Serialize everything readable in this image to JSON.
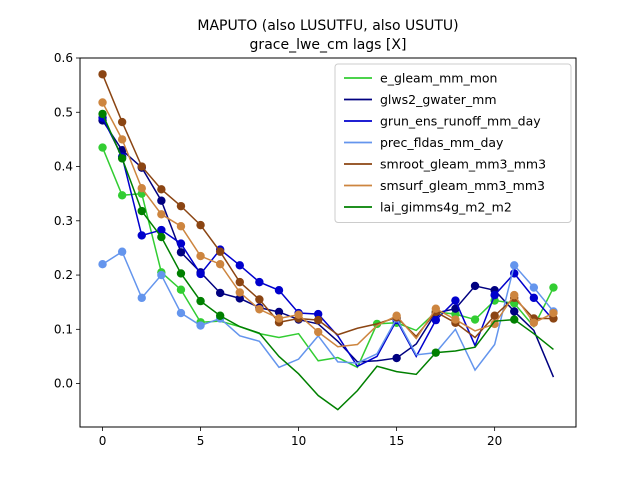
{
  "chart_data": {
    "type": "line",
    "title": "MAPUTO (also LUSUTFU, also USUTU)",
    "subtitle": "grace_lwe_cm lags [X]",
    "xlabel": "",
    "ylabel": "",
    "xlim": [
      -1.15,
      24.15
    ],
    "ylim": [
      -0.08,
      0.6
    ],
    "xticks": [
      0,
      5,
      10,
      15,
      20
    ],
    "yticks": [
      0.0,
      0.1,
      0.2,
      0.3,
      0.4,
      0.5,
      0.6
    ],
    "xtick_labels": [
      "0",
      "5",
      "10",
      "15",
      "20"
    ],
    "ytick_labels": [
      "0.0",
      "0.1",
      "0.2",
      "0.3",
      "0.4",
      "0.5",
      "0.6"
    ],
    "grid": false,
    "legend_position": "upper right",
    "x": [
      0,
      1,
      2,
      3,
      4,
      5,
      6,
      7,
      8,
      9,
      10,
      11,
      12,
      13,
      14,
      15,
      16,
      17,
      18,
      19,
      20,
      21,
      22,
      23
    ],
    "series": [
      {
        "name": "e_gleam_mm_mon",
        "color": "#32cd32",
        "values": [
          0.435,
          0.347,
          0.35,
          0.205,
          0.173,
          0.113,
          0.115,
          0.105,
          0.092,
          0.085,
          0.092,
          0.042,
          0.048,
          0.03,
          0.11,
          0.112,
          0.098,
          0.132,
          0.128,
          0.118,
          0.153,
          0.148,
          0.105,
          0.177
        ],
        "markers": [
          0,
          1,
          2,
          3,
          4,
          5,
          14,
          15,
          17,
          18,
          19,
          20,
          21,
          23
        ]
      },
      {
        "name": "glws2_gwater_mm",
        "color": "#000080",
        "values": [
          0.485,
          0.43,
          0.398,
          0.337,
          0.242,
          0.205,
          0.167,
          0.157,
          0.14,
          0.132,
          0.118,
          0.11,
          0.078,
          0.04,
          0.042,
          0.047,
          0.073,
          0.13,
          0.138,
          0.18,
          0.172,
          0.133,
          0.098,
          0.012
        ],
        "markers": [
          0,
          1,
          2,
          3,
          4,
          5,
          6,
          7,
          8,
          9,
          10,
          15,
          17,
          18,
          19,
          20,
          21
        ]
      },
      {
        "name": "grun_ens_runoff_mm_day",
        "color": "#0000cd",
        "values": [
          0.49,
          0.418,
          0.273,
          0.283,
          0.258,
          0.202,
          0.247,
          0.218,
          0.187,
          0.172,
          0.13,
          0.128,
          0.088,
          0.032,
          0.05,
          0.117,
          0.05,
          0.117,
          0.153,
          0.07,
          0.163,
          0.203,
          0.158,
          0.117
        ],
        "markers": [
          0,
          1,
          2,
          3,
          4,
          5,
          6,
          7,
          8,
          9,
          10,
          11,
          15,
          17,
          18,
          20,
          21,
          22
        ]
      },
      {
        "name": "prec_fldas_mm_day",
        "color": "#6495ed",
        "values": [
          0.22,
          0.243,
          0.158,
          0.2,
          0.13,
          0.107,
          0.12,
          0.088,
          0.078,
          0.03,
          0.045,
          0.088,
          0.04,
          0.038,
          0.055,
          0.12,
          0.053,
          0.057,
          0.1,
          0.025,
          0.072,
          0.218,
          0.177,
          0.133
        ],
        "markers": [
          0,
          1,
          2,
          3,
          4,
          5,
          6,
          15,
          21,
          22,
          23
        ]
      },
      {
        "name": "smroot_gleam_mm3_mm3",
        "color": "#8b4513",
        "values": [
          0.57,
          0.482,
          0.4,
          0.358,
          0.327,
          0.292,
          0.243,
          0.187,
          0.155,
          0.113,
          0.12,
          0.117,
          0.09,
          0.102,
          0.11,
          0.122,
          0.087,
          0.132,
          0.112,
          0.085,
          0.125,
          0.158,
          0.12,
          0.12
        ],
        "markers": [
          0,
          1,
          2,
          3,
          4,
          5,
          6,
          7,
          8,
          9,
          10,
          11,
          15,
          17,
          18,
          20,
          21,
          22,
          23
        ]
      },
      {
        "name": "smsurf_gleam_mm3_mm3",
        "color": "#cd853f",
        "values": [
          0.518,
          0.45,
          0.36,
          0.312,
          0.29,
          0.235,
          0.22,
          0.168,
          0.137,
          0.12,
          0.127,
          0.095,
          0.068,
          0.072,
          0.107,
          0.125,
          0.083,
          0.138,
          0.118,
          0.097,
          0.11,
          0.163,
          0.112,
          0.13
        ],
        "markers": [
          0,
          1,
          2,
          3,
          4,
          5,
          6,
          7,
          8,
          9,
          10,
          11,
          15,
          17,
          18,
          20,
          21,
          22,
          23
        ]
      },
      {
        "name": "lai_gimms4g_m2_m2",
        "color": "#008000",
        "values": [
          0.497,
          0.415,
          0.318,
          0.27,
          0.203,
          0.152,
          0.125,
          0.105,
          0.093,
          0.05,
          0.018,
          -0.022,
          -0.048,
          -0.013,
          0.032,
          0.022,
          0.017,
          0.057,
          0.06,
          0.067,
          0.115,
          0.118,
          0.092,
          0.063
        ],
        "markers": [
          0,
          1,
          2,
          3,
          4,
          5,
          6,
          17,
          21
        ]
      }
    ]
  }
}
